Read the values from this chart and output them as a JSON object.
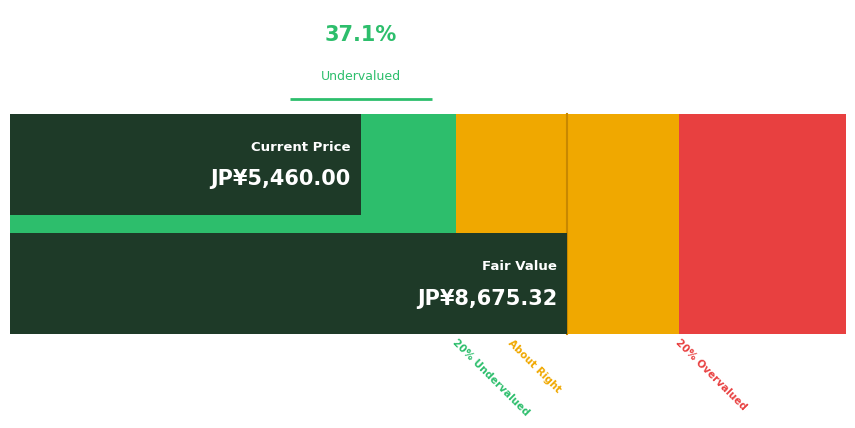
{
  "percentage": "37.1%",
  "percentage_label": "Undervalued",
  "current_price_label": "Current Price",
  "current_price_value": "JP¥5,460.00",
  "fair_value_label": "Fair Value",
  "fair_value_value": "JP¥8,675.32",
  "current_price": 5460.0,
  "fair_value": 8675.32,
  "price_max": 13012.98,
  "color_bright_green": "#2dbe6c",
  "color_orange": "#f0a800",
  "color_red": "#e84040",
  "color_white": "#ffffff",
  "color_dark_box": "#1e3a28",
  "segment_labels": [
    "20% Undervalued",
    "About Right",
    "20% Overvalued"
  ],
  "segment_label_colors": [
    "#2dbe6c",
    "#f0a800",
    "#e84040"
  ],
  "bg_color": "#ffffff",
  "fig_width": 8.53,
  "fig_height": 3.8
}
